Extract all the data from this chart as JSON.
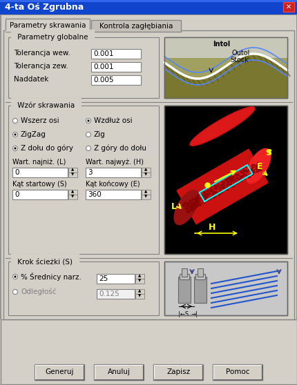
{
  "title": "4-ta Oś Zgrubna",
  "title_color": "#ffffff",
  "title_bg": "#0055ee",
  "dialog_bg": "#d4d0c8",
  "tab1": "Parametry skrawania",
  "tab2": "Kontrola zagłębiania",
  "section1_label": "Parametry globalne",
  "tol_wew_label": "Tolerancja wew.",
  "tol_wew_val": "0.001",
  "tol_zew_label": "Tolerancja zew.",
  "tol_zew_val": "0.001",
  "naddatek_label": "Naddatek",
  "naddatek_val": "0.005",
  "section2_label": "Wzór skrawania",
  "radio1a": "Wszerz osi",
  "radio1b": "Wzdłuż osi",
  "radio2a": "ZigZag",
  "radio2b": "Zig",
  "radio3a": "Z dołu do góry",
  "radio3b": "Z góry do dołu",
  "wart_low_label": "Wart. najniż. (L)",
  "wart_low_val": "0",
  "wart_high_label": "Wart. najwyż. (H)",
  "wart_high_val": "3",
  "kat_start_label": "Kąt startowy (S)",
  "kat_start_val": "0",
  "kat_end_label": "Kąt końcowy (E)",
  "kat_end_val": "360",
  "section3_label": "Krok ścieżki (S)",
  "radio_pct": "% Średnicy narz.",
  "pct_val": "25",
  "radio_dist": "Odległość",
  "dist_val": "0.125",
  "btn1": "Generuj",
  "btn2": "Anuluj",
  "btn3": "Zapisz",
  "btn4": "Pomoc"
}
